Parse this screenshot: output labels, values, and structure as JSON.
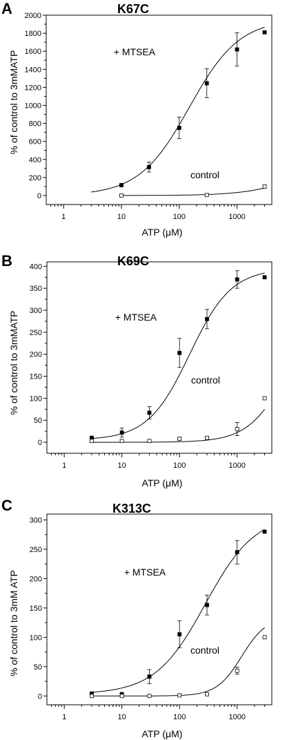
{
  "chart_data": [
    {
      "type": "scatter",
      "panel": "A",
      "title": "K67C",
      "xlabel": "ATP (μM)",
      "ylabel": "% of control to 3mMATP",
      "xscale": "log",
      "xlim": [
        0.5,
        4000
      ],
      "ylim": [
        -100,
        2000
      ],
      "xticks": [
        1,
        10,
        100,
        1000
      ],
      "yticks": [
        0,
        200,
        400,
        600,
        800,
        1000,
        1200,
        1400,
        1600,
        1800,
        2000
      ],
      "annotations": [
        "+ MTSEA",
        "control"
      ],
      "series": [
        {
          "name": "+ MTSEA",
          "marker": "filled-square",
          "x": [
            10,
            30,
            100,
            300,
            1000,
            3000
          ],
          "y": [
            115,
            315,
            750,
            1245,
            1620,
            1810
          ],
          "err": [
            10,
            55,
            120,
            160,
            185,
            0
          ],
          "fit": {
            "bottom": 0,
            "top": 1960,
            "ec50": 150,
            "hill": 1.0,
            "xrange": [
              3,
              3000
            ]
          }
        },
        {
          "name": "control",
          "marker": "open-square",
          "x": [
            10,
            300,
            3000
          ],
          "y": [
            0,
            5,
            100
          ],
          "err": [
            0,
            0,
            0
          ],
          "fit": {
            "bottom": 0,
            "top": 300,
            "ec50": 8000,
            "hill": 1.0,
            "xrange": [
              10,
              3000
            ]
          }
        }
      ]
    },
    {
      "type": "scatter",
      "panel": "B",
      "title": "K69C",
      "xlabel": "ATP (μM)",
      "ylabel": "% of control to 3mMATP",
      "xscale": "log",
      "xlim": [
        0.5,
        4000
      ],
      "ylim": [
        -25,
        410
      ],
      "xticks": [
        1,
        10,
        100,
        1000
      ],
      "yticks": [
        0,
        50,
        100,
        150,
        200,
        250,
        300,
        350,
        400
      ],
      "annotations": [
        "+ MTSEA",
        "control"
      ],
      "series": [
        {
          "name": "+ MTSEA",
          "marker": "filled-square",
          "x": [
            3,
            10,
            30,
            100,
            300,
            1000,
            3000
          ],
          "y": [
            10,
            22,
            67,
            203,
            280,
            370,
            375
          ],
          "err": [
            4,
            10,
            14,
            33,
            22,
            20,
            0
          ],
          "fit": {
            "bottom": 5,
            "top": 395,
            "ec50": 150,
            "hill": 1.2,
            "xrange": [
              3,
              3000
            ]
          }
        },
        {
          "name": "control",
          "marker": "open-square",
          "x": [
            3,
            10,
            30,
            100,
            300,
            1000,
            3000
          ],
          "y": [
            3,
            3,
            3,
            8,
            10,
            30,
            100
          ],
          "err": [
            0,
            0,
            0,
            3,
            2,
            15,
            0
          ],
          "fit": {
            "bottom": 0,
            "top": 300,
            "ec50": 7000,
            "hill": 1.3,
            "xrange": [
              3,
              3000
            ]
          }
        }
      ]
    },
    {
      "type": "scatter",
      "panel": "C",
      "title": "K313C",
      "xlabel": "ATP (μM)",
      "ylabel": "% of control to 3mM ATP",
      "xscale": "log",
      "xlim": [
        0.5,
        4000
      ],
      "ylim": [
        -15,
        310
      ],
      "xticks": [
        1,
        10,
        100,
        1000
      ],
      "yticks": [
        0,
        50,
        100,
        150,
        200,
        250,
        300
      ],
      "annotations": [
        "+ MTSEA",
        "control"
      ],
      "series": [
        {
          "name": "+ MTSEA",
          "marker": "filled-square",
          "x": [
            3,
            10,
            30,
            100,
            300,
            1000,
            3000
          ],
          "y": [
            4,
            3,
            33,
            105,
            155,
            245,
            280
          ],
          "err": [
            3,
            3,
            12,
            23,
            17,
            20,
            0
          ],
          "fit": {
            "bottom": 3,
            "top": 310,
            "ec50": 280,
            "hill": 1.0,
            "xrange": [
              3,
              3000
            ]
          }
        },
        {
          "name": "control",
          "marker": "open-square",
          "x": [
            3,
            10,
            30,
            100,
            300,
            1000,
            3000
          ],
          "y": [
            0,
            0,
            0,
            1,
            3,
            43,
            100
          ],
          "err": [
            0,
            0,
            0,
            0,
            0,
            6,
            0
          ],
          "fit": {
            "bottom": 0,
            "top": 135,
            "ec50": 1200,
            "hill": 2.0,
            "xrange": [
              3,
              3000
            ]
          }
        }
      ]
    }
  ]
}
